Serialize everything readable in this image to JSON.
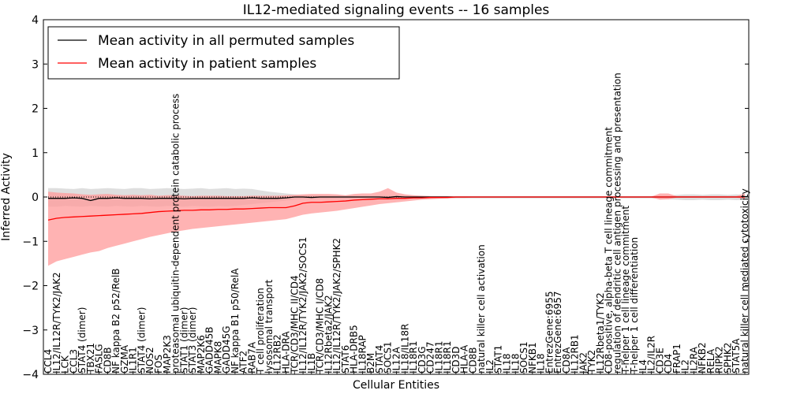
{
  "chart_data": {
    "type": "line",
    "title": "IL12-mediated signaling events -- 16 samples",
    "xlabel": "Cellular Entities",
    "ylabel": "Inferred Activity",
    "ylim": [
      -4,
      4
    ],
    "yticks": [
      -4,
      -3,
      -2,
      -1,
      0,
      1,
      2,
      3,
      4
    ],
    "legend_position": "top-left",
    "colors": {
      "permuted_line": "#000000",
      "patient_line": "#ff0000",
      "patient_band": "#ff9a9a",
      "permuted_band": "#c8c8c8"
    },
    "categories": [
      "CCL4",
      "IL12/IL12R/TYK2/JAK2",
      "LCK",
      "CCL3",
      "STAT4 (dimer)",
      "TBX21",
      "FASLG",
      "CD8B",
      "NF kappa B2 p52/RelB",
      "GZMA",
      "IL1R1",
      "STAT4 (dimer)",
      "NOS2",
      "FOS",
      "MAP2K3",
      "proteasomal ubiquitin-dependent protein catabolic process",
      "STAT1 (dimer)",
      "STAT3 (dimer)",
      "MAP2K6",
      "GADD45B",
      "MAPK8",
      "GADD45G",
      "NF kappa B1 p50/RelA",
      "ATF2",
      "RAB7A",
      "T cell proliferation",
      "lysosomal transport",
      "IL12RB2",
      "HLA-DRA",
      "TCR/CD3/MHC II/CD4",
      "IL12/IL12R/TYK2/JAK2/SOCS1",
      "IL1B",
      "TCR/CD3/MHC I/CD8",
      "IL12Rbeta2/JAK2",
      "IL12/IL12R/TYK2/JAK2/SPHK2",
      "STAT6",
      "HLA-DRB5",
      "IL18RAP",
      "B2M",
      "STAT4",
      "SOCS1",
      "IL12A",
      "IL18/IL18R",
      "IL18R1",
      "CD3G",
      "CD247",
      "IL18R1",
      "IL18R1",
      "CD3D",
      "HLA-A",
      "CD8B",
      "natural killer cell activation",
      "IL2",
      "STAT1",
      "IL18",
      "IL18",
      "SOCS1",
      "NFKB1",
      "IL18",
      "EntrezGene:6955",
      "EntrezGene:6957",
      "CD8A",
      "IL12RB1",
      "JAK2",
      "TYK2",
      "IL12Rbeta1/TYK2",
      "CD8-positive, alpha-beta T cell lineage commitment",
      "regulation of dendritic cell antigen processing and presentation",
      "T-helper 1 cell lineage commitment",
      "T-helper 1 cell differentiation",
      "IL4",
      "IL2/IL2R",
      "CD3E",
      "CD4",
      "FRAP1",
      "IL2",
      "IL2RA",
      "NFKB2",
      "RELA",
      "RIPK2",
      "SPHK2",
      "STAT5A",
      "natural killer cell mediated cytotoxicity"
    ],
    "series": [
      {
        "name": "Mean activity in all permuted samples",
        "values": [
          -0.03,
          -0.03,
          -0.03,
          -0.02,
          -0.03,
          -0.08,
          -0.03,
          -0.03,
          -0.02,
          -0.03,
          -0.03,
          -0.03,
          -0.04,
          -0.03,
          -0.03,
          -0.03,
          -0.04,
          -0.03,
          -0.03,
          -0.03,
          -0.03,
          -0.03,
          -0.03,
          -0.03,
          -0.02,
          -0.03,
          -0.03,
          -0.03,
          -0.02,
          0.0,
          0.0,
          -0.01,
          0.0,
          0.0,
          0.0,
          0.0,
          0.0,
          0.0,
          0.0,
          0.0,
          -0.01,
          0.01,
          0.0,
          0.0,
          0.0,
          0.0,
          0.0,
          0.0,
          0.0,
          0.0,
          0.0,
          0.0,
          0.0,
          0.0,
          0.0,
          0.0,
          0.0,
          0.0,
          0.0,
          0.0,
          0.0,
          0.0,
          0.0,
          0.0,
          0.0,
          0.0,
          0.0,
          0.0,
          0.0,
          0.0,
          0.0,
          0.0,
          0.0,
          0.0,
          0.0,
          0.0,
          0.0,
          0.0,
          0.0,
          0.0,
          0.0,
          0.0,
          0.0
        ]
      },
      {
        "name": "Mean activity in patient samples",
        "values": [
          -0.52,
          -0.48,
          -0.46,
          -0.45,
          -0.44,
          -0.43,
          -0.42,
          -0.41,
          -0.4,
          -0.39,
          -0.38,
          -0.37,
          -0.35,
          -0.33,
          -0.32,
          -0.31,
          -0.3,
          -0.3,
          -0.29,
          -0.29,
          -0.28,
          -0.28,
          -0.27,
          -0.27,
          -0.26,
          -0.25,
          -0.24,
          -0.24,
          -0.24,
          -0.2,
          -0.14,
          -0.12,
          -0.12,
          -0.11,
          -0.1,
          -0.09,
          -0.07,
          -0.06,
          -0.05,
          -0.04,
          -0.04,
          -0.03,
          -0.03,
          -0.02,
          -0.02,
          -0.01,
          -0.01,
          -0.01,
          0.0,
          0.0,
          0.0,
          0.0,
          0.0,
          0.0,
          0.0,
          0.0,
          0.0,
          0.0,
          0.0,
          0.0,
          0.0,
          0.0,
          0.0,
          0.0,
          0.0,
          0.0,
          0.0,
          0.0,
          0.0,
          0.0,
          0.0,
          0.0,
          0.0,
          0.0,
          0.0,
          0.0,
          0.0,
          0.0,
          0.0,
          0.0,
          0.0,
          0.0,
          0.0
        ]
      }
    ],
    "patient_band_upper": [
      0.12,
      0.1,
      0.09,
      0.08,
      0.06,
      0.05,
      0.06,
      0.07,
      0.05,
      0.04,
      0.05,
      0.04,
      0.05,
      0.03,
      0.04,
      0.04,
      0.03,
      0.02,
      0.03,
      0.03,
      0.03,
      0.02,
      0.02,
      0.02,
      0.03,
      0.03,
      0.03,
      0.03,
      0.04,
      0.05,
      0.06,
      0.07,
      0.07,
      0.07,
      0.06,
      0.04,
      0.07,
      0.08,
      0.08,
      0.12,
      0.2,
      0.1,
      0.06,
      0.04,
      0.03,
      0.02,
      0.02,
      0.02,
      0.01,
      0.01,
      0.01,
      0.01,
      0.01,
      0.01,
      0.01,
      0.01,
      0.01,
      0.01,
      0.01,
      0.01,
      0.01,
      0.01,
      0.01,
      0.01,
      0.01,
      0.01,
      0.01,
      0.01,
      0.01,
      0.01,
      0.01,
      0.01,
      0.08,
      0.08,
      0.02,
      0.02,
      0.02,
      0.02,
      0.02,
      0.02,
      0.02,
      0.02,
      0.08
    ],
    "patient_band_lower": [
      -1.55,
      -1.45,
      -1.4,
      -1.35,
      -1.3,
      -1.25,
      -1.22,
      -1.15,
      -1.1,
      -1.05,
      -1.0,
      -0.95,
      -0.9,
      -0.86,
      -0.82,
      -0.78,
      -0.75,
      -0.72,
      -0.7,
      -0.68,
      -0.66,
      -0.64,
      -0.62,
      -0.6,
      -0.58,
      -0.56,
      -0.54,
      -0.52,
      -0.5,
      -0.45,
      -0.4,
      -0.37,
      -0.35,
      -0.33,
      -0.31,
      -0.28,
      -0.25,
      -0.22,
      -0.19,
      -0.16,
      -0.14,
      -0.12,
      -0.1,
      -0.08,
      -0.06,
      -0.05,
      -0.04,
      -0.03,
      -0.02,
      -0.02,
      -0.01,
      -0.01,
      -0.01,
      -0.01,
      -0.01,
      -0.01,
      -0.01,
      -0.01,
      -0.01,
      -0.01,
      -0.01,
      -0.01,
      -0.01,
      -0.01,
      -0.01,
      -0.01,
      -0.01,
      -0.01,
      -0.01,
      -0.01,
      -0.01,
      -0.01,
      -0.06,
      -0.05,
      -0.01,
      -0.01,
      -0.01,
      -0.01,
      -0.01,
      -0.01,
      -0.01,
      -0.01,
      -0.04
    ],
    "permuted_band_upper": [
      0.2,
      0.2,
      0.19,
      0.18,
      0.2,
      0.18,
      0.19,
      0.2,
      0.19,
      0.18,
      0.2,
      0.2,
      0.18,
      0.19,
      0.2,
      0.19,
      0.18,
      0.19,
      0.2,
      0.18,
      0.19,
      0.2,
      0.18,
      0.19,
      0.18,
      0.15,
      0.12,
      0.1,
      0.08,
      0.06,
      0.05,
      0.04,
      0.04,
      0.03,
      0.03,
      0.03,
      0.03,
      0.02,
      0.02,
      0.02,
      0.02,
      0.02,
      0.02,
      0.02,
      0.02,
      0.02,
      0.02,
      0.02,
      0.02,
      0.02,
      0.02,
      0.02,
      0.02,
      0.02,
      0.02,
      0.02,
      0.02,
      0.02,
      0.02,
      0.02,
      0.02,
      0.02,
      0.02,
      0.02,
      0.02,
      0.02,
      0.02,
      0.02,
      0.02,
      0.02,
      0.02,
      0.02,
      0.03,
      0.03,
      0.05,
      0.06,
      0.06,
      0.05,
      0.06,
      0.06,
      0.05,
      0.06,
      0.05
    ],
    "permuted_band_lower": [
      -0.22,
      -0.22,
      -0.2,
      -0.21,
      -0.22,
      -0.2,
      -0.21,
      -0.22,
      -0.2,
      -0.21,
      -0.22,
      -0.2,
      -0.21,
      -0.22,
      -0.2,
      -0.21,
      -0.22,
      -0.2,
      -0.21,
      -0.22,
      -0.2,
      -0.21,
      -0.2,
      -0.18,
      -0.16,
      -0.14,
      -0.12,
      -0.1,
      -0.08,
      -0.06,
      -0.05,
      -0.05,
      -0.04,
      -0.04,
      -0.03,
      -0.03,
      -0.03,
      -0.03,
      -0.03,
      -0.03,
      -0.03,
      -0.03,
      -0.03,
      -0.03,
      -0.03,
      -0.03,
      -0.03,
      -0.03,
      -0.03,
      -0.03,
      -0.03,
      -0.03,
      -0.03,
      -0.03,
      -0.03,
      -0.03,
      -0.03,
      -0.03,
      -0.03,
      -0.03,
      -0.03,
      -0.03,
      -0.03,
      -0.03,
      -0.03,
      -0.03,
      -0.03,
      -0.03,
      -0.03,
      -0.03,
      -0.03,
      -0.03,
      -0.04,
      -0.05,
      -0.06,
      -0.07,
      -0.07,
      -0.06,
      -0.07,
      -0.07,
      -0.06,
      -0.07,
      -0.06
    ]
  }
}
